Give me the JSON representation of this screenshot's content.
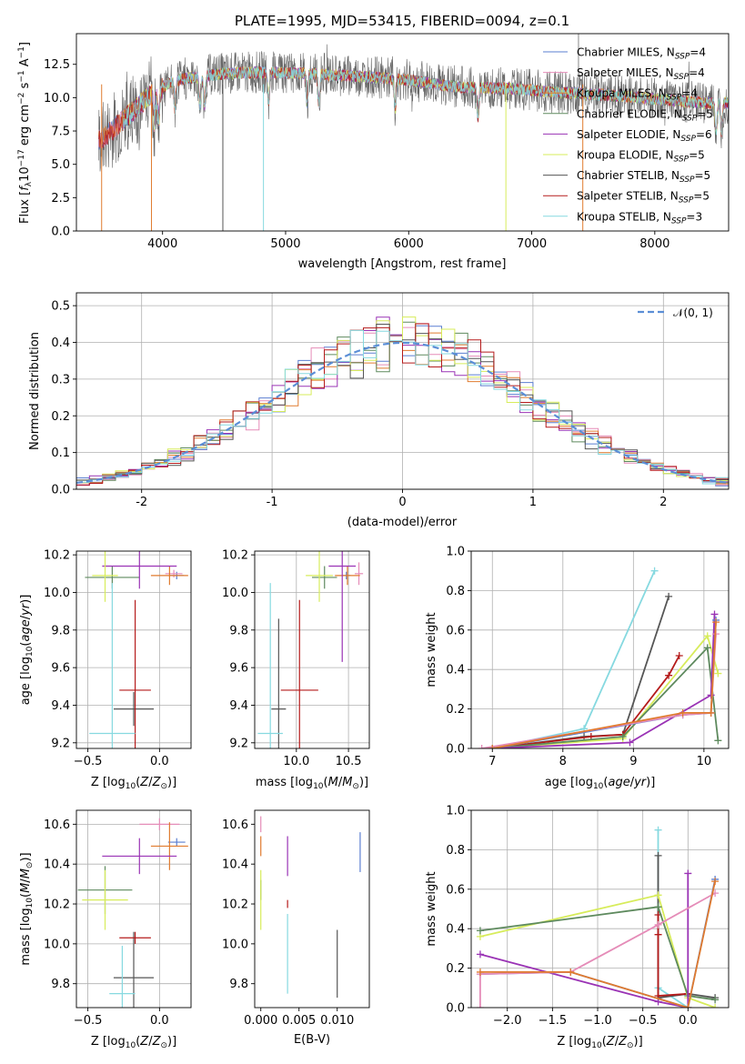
{
  "figure_title": "PLATE=1995, MJD=53415, FIBERID=0094, z=0.1",
  "colors": {
    "Chabrier MILES": "#5b7fd1",
    "Salpeter MILES": "#e58cb8",
    "Kroupa MILES": "#e07b2f",
    "Chabrier ELODIE": "#5e8a5e",
    "Salpeter ELODIE": "#9a33b5",
    "Kroupa ELODIE": "#d7ec5b",
    "Chabrier STELIB": "#555555",
    "Salpeter STELIB": "#b51b1b",
    "Kroupa STELIB": "#86d9e0"
  },
  "chart_data": [
    {
      "id": "spectrum",
      "type": "line",
      "xlabel": "wavelength [Angstrom, rest frame]",
      "ylabel": "Flux [f_λ 10^-17 erg cm^-2 s^-1 A^-1]",
      "xlim": [
        3300,
        8600
      ],
      "ylim": [
        0,
        14.8
      ],
      "xticks": [
        4000,
        5000,
        6000,
        7000,
        8000
      ],
      "yticks": [
        0.0,
        2.5,
        5.0,
        7.5,
        10.0,
        12.5
      ],
      "grid": false,
      "legend": "top-right",
      "legend_entries": [
        {
          "name": "Chabrier MILES",
          "nssp": "4"
        },
        {
          "name": "Salpeter MILES",
          "nssp": "4"
        },
        {
          "name": "Kroupa MILES",
          "nssp": "4"
        },
        {
          "name": "Chabrier ELODIE",
          "nssp": "5"
        },
        {
          "name": "Salpeter ELODIE",
          "nssp": "6"
        },
        {
          "name": "Kroupa ELODIE",
          "nssp": "5"
        },
        {
          "name": "Chabrier STELIB",
          "nssp": "5"
        },
        {
          "name": "Salpeter STELIB",
          "nssp": "5"
        },
        {
          "name": "Kroupa STELIB",
          "nssp": "3"
        }
      ],
      "data_trend": {
        "x": [
          3500,
          3700,
          3900,
          4100,
          4300,
          4500,
          4800,
          5200,
          5600,
          6000,
          6400,
          6800,
          7200,
          7600,
          8000,
          8400
        ],
        "y": [
          6.8,
          8.5,
          10.2,
          11.3,
          11.6,
          11.8,
          11.9,
          11.8,
          11.6,
          11.3,
          10.8,
          10.7,
          10.4,
          10.2,
          9.9,
          9.6
        ]
      },
      "dips": [
        {
          "x": 3505,
          "series": "Kroupa MILES"
        },
        {
          "x": 3910,
          "series": "Kroupa MILES"
        },
        {
          "x": 4490,
          "series": "Chabrier STELIB"
        },
        {
          "x": 4820,
          "series": "Kroupa STELIB"
        },
        {
          "x": 6790,
          "series": "Kroupa ELODIE"
        },
        {
          "x": 7415,
          "series": "Kroupa MILES"
        }
      ]
    },
    {
      "id": "residuals",
      "type": "bar",
      "xlabel": "(data-model)/error",
      "ylabel": "Normed distribution",
      "xlim": [
        -2.5,
        2.5
      ],
      "ylim": [
        0,
        0.535
      ],
      "xticks": [
        -2,
        -1,
        0,
        1,
        2
      ],
      "yticks": [
        0.0,
        0.1,
        0.2,
        0.3,
        0.4,
        0.5
      ],
      "grid": true,
      "legend": "top-right",
      "legend_label": "𝒩(0, 1)",
      "bin_width": 0.1,
      "bin_start": -2.5
    },
    {
      "id": "age_vs_Z",
      "type": "scatter",
      "xlabel": "Z [log10(Z/Z☉)]",
      "ylabel": "age [log10(age/yr)]",
      "xlim": [
        -0.58,
        0.22
      ],
      "ylim": [
        9.17,
        10.22
      ],
      "xticks": [
        -0.5,
        0.0
      ],
      "xtick_labels": [
        "−0.5",
        "0.0"
      ],
      "yticks": [
        9.2,
        9.4,
        9.6,
        9.8,
        10.0,
        10.2
      ],
      "grid": true,
      "points": [
        {
          "series": "Chabrier MILES",
          "x": 0.12,
          "y": 10.09,
          "xerr": 0.05,
          "yerr": 0.02
        },
        {
          "series": "Salpeter MILES",
          "x": 0.1,
          "y": 10.1,
          "xerr": 0.06,
          "yerr": 0.02
        },
        {
          "series": "Kroupa MILES",
          "x": 0.07,
          "y": 10.09,
          "xerr": 0.13,
          "yerr": 0.05
        },
        {
          "series": "Chabrier ELODIE",
          "x": -0.33,
          "y": 10.08,
          "xerr": 0.19,
          "yerr": 0.06
        },
        {
          "series": "Salpeter ELODIE",
          "x": -0.14,
          "y": 10.14,
          "xerr": 0.26,
          "yerr": 0.12
        },
        {
          "series": "Kroupa ELODIE",
          "x": -0.38,
          "y": 10.09,
          "xerr": 0.09,
          "yerr": 0.14
        },
        {
          "series": "Chabrier STELIB",
          "x": -0.18,
          "y": 9.38,
          "xerr": 0.14,
          "yerr": 0.09
        },
        {
          "series": "Salpeter STELIB",
          "x": -0.17,
          "y": 9.48,
          "xerr": 0.11,
          "yerr": 0.48
        },
        {
          "series": "Kroupa STELIB",
          "x": -0.33,
          "y": 9.25,
          "xerr": 0.16,
          "yerr": 0.8
        }
      ]
    },
    {
      "id": "age_vs_mass",
      "type": "scatter",
      "xlabel": "mass [log10(M/M☉)]",
      "xlim": [
        9.6,
        10.7
      ],
      "ylim": [
        9.17,
        10.22
      ],
      "xticks": [
        10.0,
        10.5
      ],
      "yticks": [
        9.2,
        9.4,
        9.6,
        9.8,
        10.0,
        10.2
      ],
      "grid": true,
      "points": [
        {
          "series": "Chabrier MILES",
          "x": 10.48,
          "y": 10.09,
          "xerr": 0.04,
          "yerr": 0.02
        },
        {
          "series": "Salpeter MILES",
          "x": 10.6,
          "y": 10.1,
          "xerr": 0.04,
          "yerr": 0.06
        },
        {
          "series": "Kroupa MILES",
          "x": 10.49,
          "y": 10.09,
          "xerr": 0.12,
          "yerr": 0.05
        },
        {
          "series": "Chabrier ELODIE",
          "x": 10.27,
          "y": 10.08,
          "xerr": 0.12,
          "yerr": 0.06
        },
        {
          "series": "Salpeter ELODIE",
          "x": 10.44,
          "y": 10.14,
          "xerr": 0.13,
          "yerr": 0.51
        },
        {
          "series": "Kroupa ELODIE",
          "x": 10.22,
          "y": 10.09,
          "xerr": 0.13,
          "yerr": 0.14
        },
        {
          "series": "Chabrier STELIB",
          "x": 9.83,
          "y": 9.38,
          "xerr": 0.07,
          "yerr": 0.48
        },
        {
          "series": "Salpeter STELIB",
          "x": 10.03,
          "y": 9.48,
          "xerr": 0.18,
          "yerr": 0.48
        },
        {
          "series": "Kroupa STELIB",
          "x": 9.75,
          "y": 9.25,
          "xerr": 0.12,
          "yerr": 0.8
        }
      ]
    },
    {
      "id": "mass_weight_vs_age",
      "type": "line",
      "xlabel": "age [log10(age/yr)]",
      "ylabel": "mass weight",
      "xlim": [
        6.7,
        10.35
      ],
      "ylim": [
        0,
        1.0
      ],
      "xticks": [
        7,
        8,
        9,
        10
      ],
      "yticks": [
        0.0,
        0.2,
        0.4,
        0.6,
        0.8,
        1.0
      ],
      "grid": true,
      "series": [
        {
          "name": "Kroupa STELIB",
          "points": [
            [
              7.0,
              0.0
            ],
            [
              8.3,
              0.1
            ],
            [
              9.3,
              0.9
            ]
          ]
        },
        {
          "name": "Chabrier STELIB",
          "points": [
            [
              7.0,
              0.0
            ],
            [
              8.3,
              0.06
            ],
            [
              8.85,
              0.07
            ],
            [
              9.5,
              0.77
            ]
          ]
        },
        {
          "name": "Salpeter STELIB",
          "points": [
            [
              7.0,
              0.0
            ],
            [
              8.4,
              0.06
            ],
            [
              8.85,
              0.07
            ],
            [
              9.5,
              0.37
            ],
            [
              9.65,
              0.47
            ]
          ]
        },
        {
          "name": "Kroupa ELODIE",
          "points": [
            [
              7.0,
              0.0
            ],
            [
              8.85,
              0.05
            ],
            [
              10.05,
              0.57
            ],
            [
              10.2,
              0.38
            ]
          ]
        },
        {
          "name": "Chabrier ELODIE",
          "points": [
            [
              7.0,
              0.0
            ],
            [
              8.85,
              0.06
            ],
            [
              10.05,
              0.51
            ],
            [
              10.2,
              0.04
            ]
          ]
        },
        {
          "name": "Salpeter ELODIE",
          "points": [
            [
              7.0,
              0.0
            ],
            [
              8.95,
              0.03
            ],
            [
              10.1,
              0.27
            ],
            [
              10.15,
              0.68
            ]
          ]
        },
        {
          "name": "Chabrier MILES",
          "points": [
            [
              7.0,
              0.0
            ],
            [
              9.7,
              0.17
            ],
            [
              10.1,
              0.18
            ],
            [
              10.17,
              0.65
            ]
          ]
        },
        {
          "name": "Salpeter MILES",
          "points": [
            [
              6.85,
              0.0
            ],
            [
              9.7,
              0.17
            ],
            [
              10.1,
              0.18
            ],
            [
              10.17,
              0.58
            ]
          ]
        },
        {
          "name": "Kroupa MILES",
          "points": [
            [
              7.0,
              0.0
            ],
            [
              9.7,
              0.18
            ],
            [
              10.1,
              0.18
            ],
            [
              10.17,
              0.64
            ]
          ]
        }
      ]
    },
    {
      "id": "mass_vs_Z",
      "type": "scatter",
      "xlabel": "Z [log10(Z/Z☉)]",
      "ylabel": "mass [log10(M/M☉)]",
      "xlim": [
        -0.58,
        0.22
      ],
      "ylim": [
        9.68,
        10.67
      ],
      "xticks": [
        -0.5,
        0.0
      ],
      "xtick_labels": [
        "−0.5",
        "0.0"
      ],
      "yticks": [
        9.8,
        10.0,
        10.2,
        10.4,
        10.6
      ],
      "grid": true,
      "points": [
        {
          "series": "Chabrier MILES",
          "x": 0.12,
          "y": 10.51,
          "xerr": 0.06,
          "yerr": 0.02
        },
        {
          "series": "Salpeter MILES",
          "x": 0.0,
          "y": 10.6,
          "xerr": 0.14,
          "yerr": 0.03
        },
        {
          "series": "Kroupa MILES",
          "x": 0.07,
          "y": 10.49,
          "xerr": 0.13,
          "yerr": 0.12
        },
        {
          "series": "Chabrier ELODIE",
          "x": -0.38,
          "y": 10.27,
          "xerr": 0.19,
          "yerr": 0.12
        },
        {
          "series": "Salpeter ELODIE",
          "x": -0.14,
          "y": 10.44,
          "xerr": 0.26,
          "yerr": 0.09
        },
        {
          "series": "Kroupa ELODIE",
          "x": -0.38,
          "y": 10.22,
          "xerr": 0.16,
          "yerr": 0.15
        },
        {
          "series": "Chabrier STELIB",
          "x": -0.18,
          "y": 9.83,
          "xerr": 0.14,
          "yerr": 0.23
        },
        {
          "series": "Salpeter STELIB",
          "x": -0.17,
          "y": 10.03,
          "xerr": 0.11,
          "yerr": 0.03
        },
        {
          "series": "Kroupa STELIB",
          "x": -0.26,
          "y": 9.75,
          "xerr": 0.09,
          "yerr": 0.24
        }
      ]
    },
    {
      "id": "mass_vs_ebv",
      "type": "scatter",
      "xlabel": "E(B-V)",
      "xlim": [
        -0.0008,
        0.0142
      ],
      "ylim": [
        9.68,
        10.67
      ],
      "xticks": [
        0.0,
        0.005,
        0.01
      ],
      "xtick_labels": [
        "0.000",
        "0.005",
        "0.010"
      ],
      "yticks": [
        9.8,
        10.0,
        10.2,
        10.4,
        10.6
      ],
      "grid": false,
      "points": [
        {
          "series": "Chabrier MILES",
          "x": 0.013,
          "y": 10.46,
          "xerr": 0.0,
          "yerr": 0.1
        },
        {
          "series": "Salpeter MILES",
          "x": 0.0,
          "y": 10.6,
          "xerr": 0.0,
          "yerr": 0.04
        },
        {
          "series": "Kroupa MILES",
          "x": 0.0,
          "y": 10.49,
          "xerr": 0.0,
          "yerr": 0.05
        },
        {
          "series": "Chabrier ELODIE",
          "x": 0.0,
          "y": 10.27,
          "xerr": 0.0,
          "yerr": 0.05
        },
        {
          "series": "Salpeter ELODIE",
          "x": 0.0035,
          "y": 10.44,
          "xerr": 0.0,
          "yerr": 0.1
        },
        {
          "series": "Kroupa ELODIE",
          "x": 0.0,
          "y": 10.22,
          "xerr": 0.0,
          "yerr": 0.15
        },
        {
          "series": "Chabrier STELIB",
          "x": 0.01,
          "y": 9.9,
          "xerr": 0.0,
          "yerr": 0.17
        },
        {
          "series": "Salpeter STELIB",
          "x": 0.0035,
          "y": 10.2,
          "xerr": 0.0,
          "yerr": 0.02
        },
        {
          "series": "Kroupa STELIB",
          "x": 0.0035,
          "y": 9.95,
          "xerr": 0.0,
          "yerr": 0.2
        }
      ]
    },
    {
      "id": "mass_weight_vs_Z",
      "type": "line",
      "xlabel": "Z [log10(Z/Z☉)]",
      "ylabel": "mass weight",
      "xlim": [
        -2.4,
        0.45
      ],
      "ylim": [
        0,
        1.0
      ],
      "xticks": [
        -2.0,
        -1.5,
        -1.0,
        -0.5,
        0.0
      ],
      "xtick_labels": [
        "−2.0",
        "−1.5",
        "−1.0",
        "−0.5",
        "0.0"
      ],
      "yticks": [
        0.0,
        0.2,
        0.4,
        0.6,
        0.8,
        1.0
      ],
      "grid": true,
      "series": [
        {
          "name": "Kroupa STELIB",
          "points": [
            [
              -0.33,
              0.9
            ],
            [
              -0.33,
              0.1
            ],
            [
              0.0,
              0.0
            ]
          ]
        },
        {
          "name": "Chabrier STELIB",
          "points": [
            [
              -0.33,
              0.77
            ],
            [
              -0.33,
              0.05
            ],
            [
              0.0,
              0.07
            ],
            [
              0.3,
              0.05
            ]
          ]
        },
        {
          "name": "Salpeter STELIB",
          "points": [
            [
              -0.33,
              0.47
            ],
            [
              -0.33,
              0.37
            ],
            [
              -0.33,
              0.06
            ],
            [
              0.0,
              0.07
            ]
          ]
        },
        {
          "name": "Kroupa ELODIE",
          "points": [
            [
              -2.3,
              0.36
            ],
            [
              -0.33,
              0.57
            ],
            [
              0.0,
              0.05
            ],
            [
              0.3,
              0.0
            ]
          ]
        },
        {
          "name": "Chabrier ELODIE",
          "points": [
            [
              -2.3,
              0.39
            ],
            [
              -0.33,
              0.51
            ],
            [
              0.0,
              0.06
            ],
            [
              0.3,
              0.04
            ]
          ]
        },
        {
          "name": "Salpeter ELODIE",
          "points": [
            [
              -2.3,
              0.27
            ],
            [
              -0.33,
              0.03
            ],
            [
              0.0,
              0.0
            ],
            [
              0.0,
              0.68
            ]
          ]
        },
        {
          "name": "Chabrier MILES",
          "points": [
            [
              -2.3,
              0.17
            ],
            [
              -1.3,
              0.18
            ],
            [
              0.0,
              0.0
            ],
            [
              0.3,
              0.65
            ]
          ]
        },
        {
          "name": "Salpeter MILES",
          "points": [
            [
              -2.3,
              0.0
            ],
            [
              -2.3,
              0.17
            ],
            [
              -1.3,
              0.18
            ],
            [
              -0.33,
              0.42
            ],
            [
              0.3,
              0.58
            ]
          ]
        },
        {
          "name": "Kroupa MILES",
          "points": [
            [
              -2.3,
              0.18
            ],
            [
              -1.3,
              0.18
            ],
            [
              0.0,
              0.0
            ],
            [
              0.3,
              0.64
            ]
          ]
        }
      ]
    }
  ]
}
